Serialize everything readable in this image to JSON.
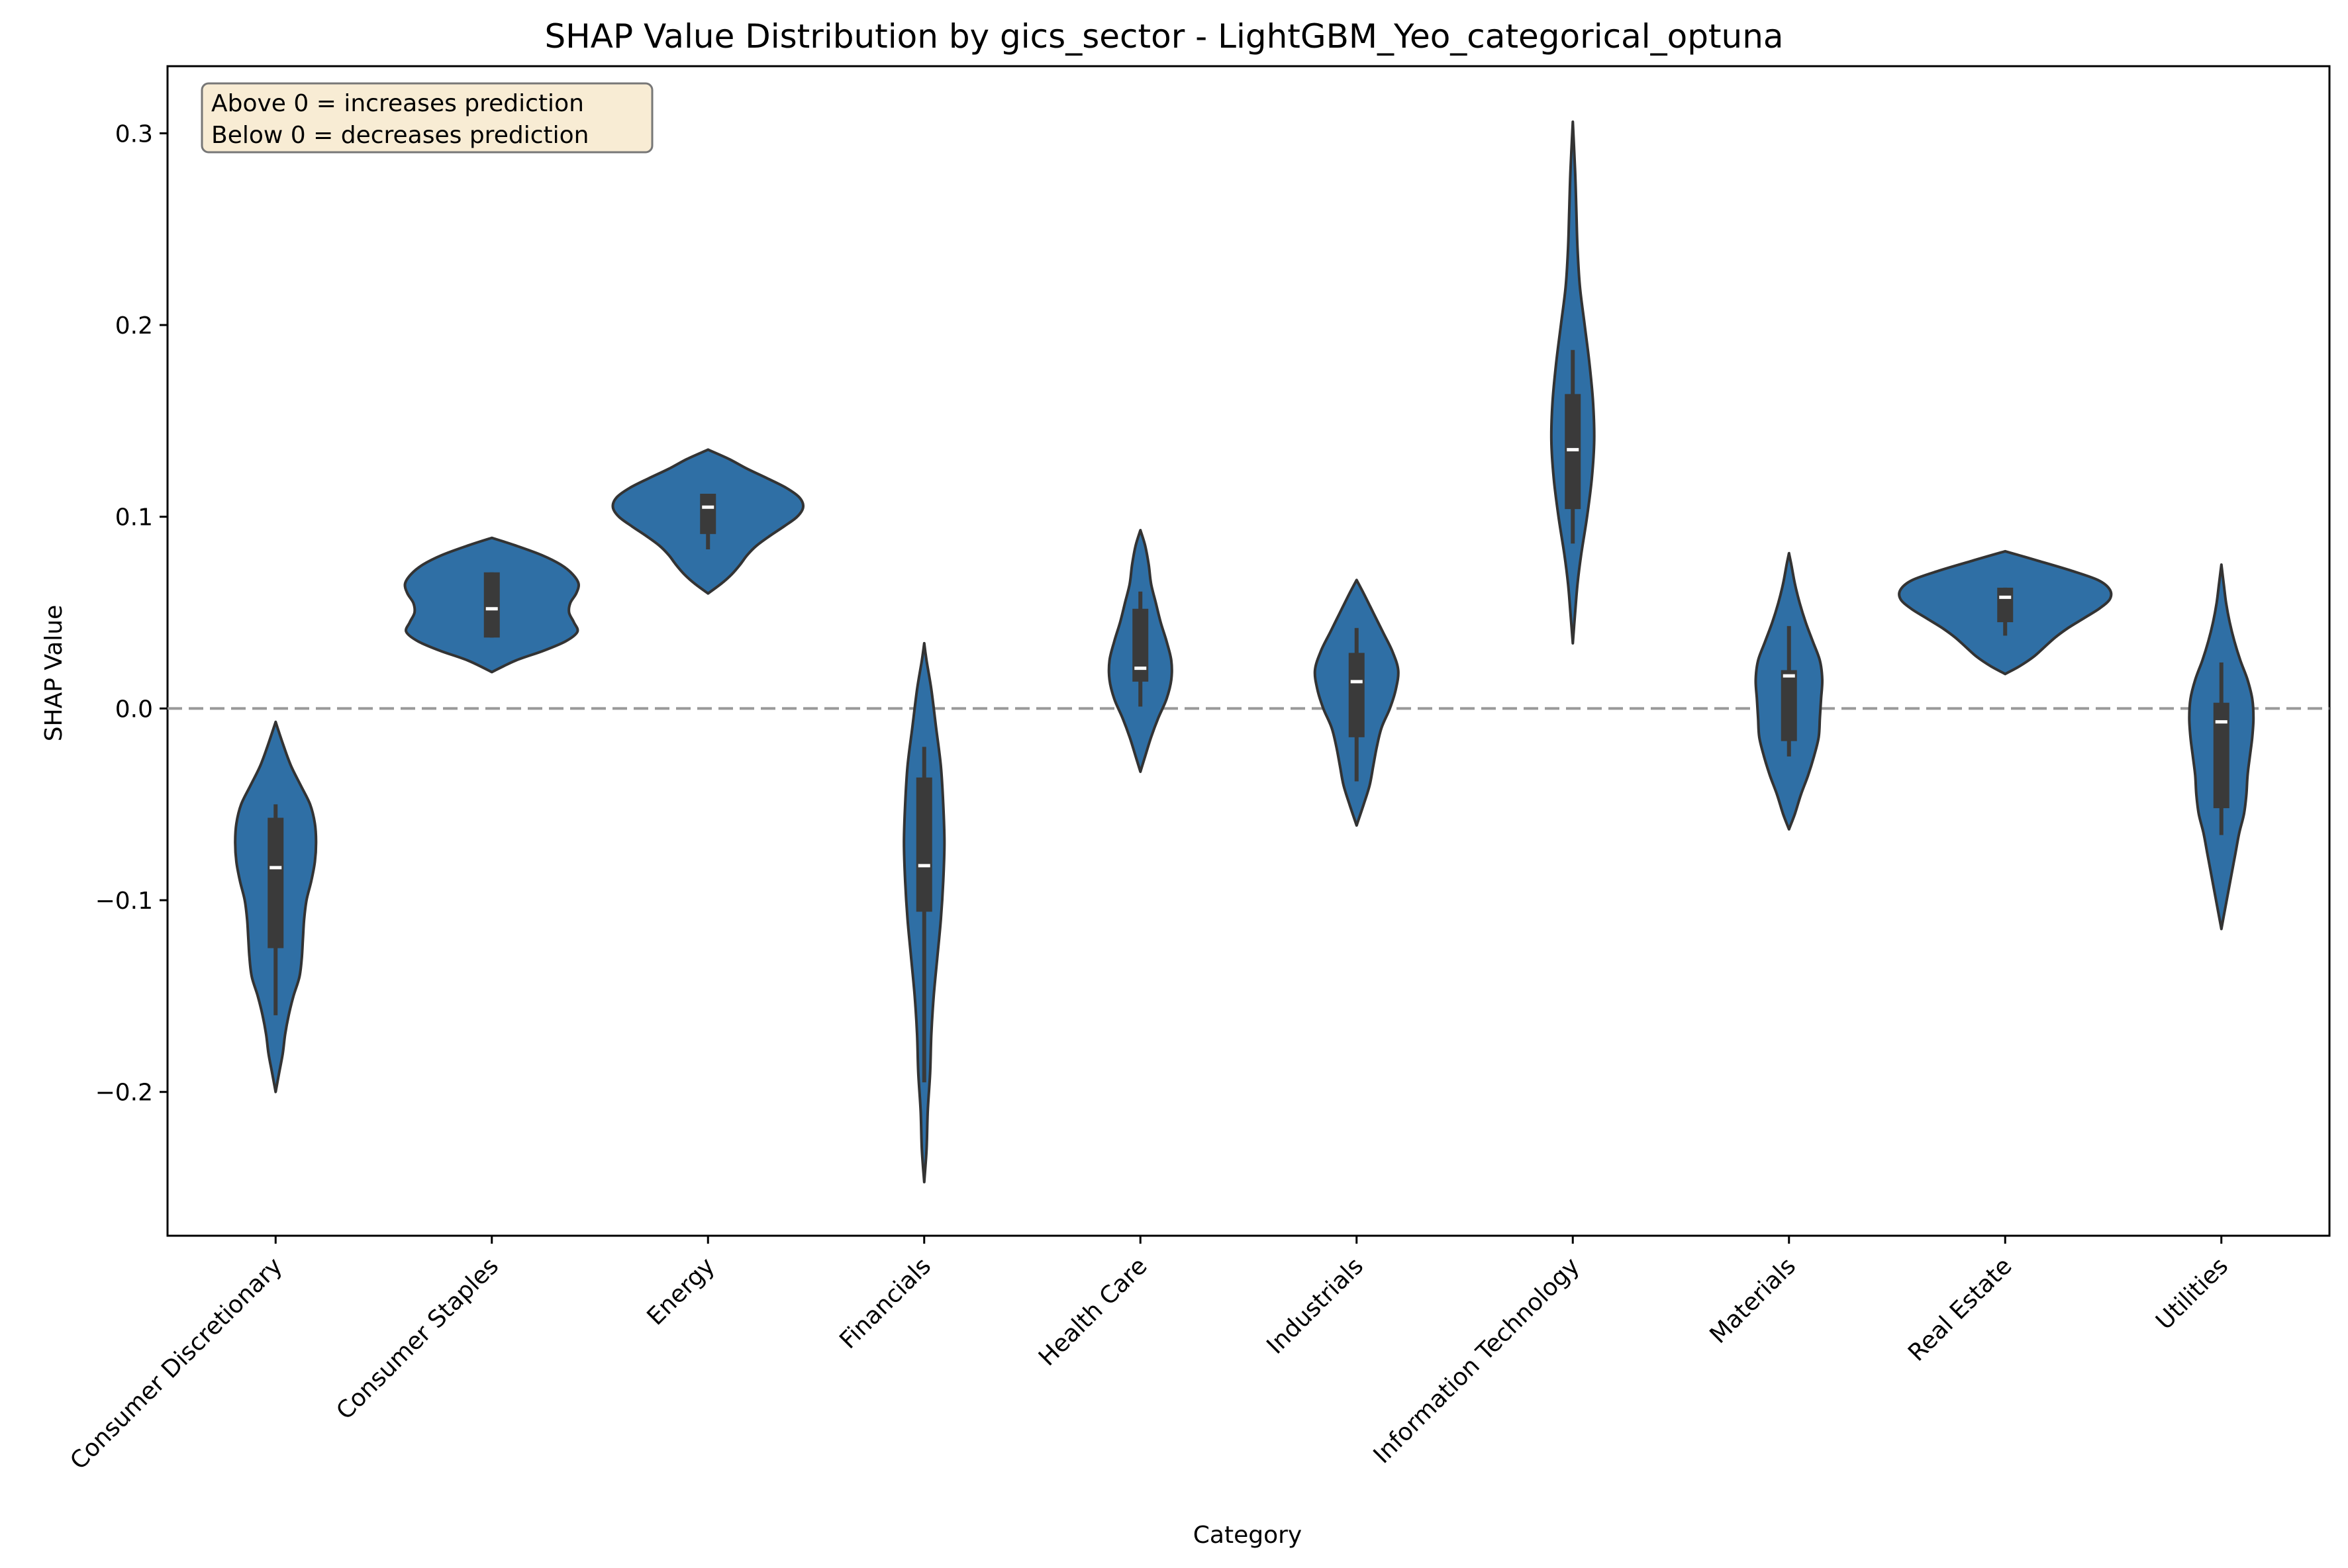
{
  "chart_data": {
    "type": "violin",
    "title": "SHAP Value Distribution by gics_sector - LightGBM_Yeo_categorical_optuna",
    "xlabel": "Category",
    "ylabel": "SHAP Value",
    "ylim": [
      -0.275,
      0.335
    ],
    "yticks": [
      -0.2,
      -0.1,
      0.0,
      0.1,
      0.2,
      0.3
    ],
    "ytick_labels": [
      "−0.2",
      "−0.1",
      "0.0",
      "0.1",
      "0.2",
      "0.3"
    ],
    "reference_line": {
      "y": 0.0,
      "style": "dashed",
      "color": "#999999"
    },
    "annotation": {
      "lines": [
        "Above 0 = increases prediction",
        "Below 0 = decreases prediction"
      ],
      "placement": "top-left"
    },
    "violin_color": "#2f6fa5",
    "edge_color": "#333333",
    "grid": false,
    "categories": [
      "Consumer Discretionary",
      "Consumer Staples",
      "Energy",
      "Financials",
      "Health Care",
      "Industrials",
      "Information Technology",
      "Materials",
      "Real Estate",
      "Utilities"
    ],
    "violins": [
      {
        "category": "Consumer Discretionary",
        "min": -0.16,
        "q1": -0.125,
        "median": -0.083,
        "q3": -0.057,
        "max": -0.05,
        "profile": [
          [
            -0.2,
            0
          ],
          [
            -0.19,
            0.003
          ],
          [
            -0.18,
            0.006
          ],
          [
            -0.17,
            0.008
          ],
          [
            -0.16,
            0.011
          ],
          [
            -0.15,
            0.015
          ],
          [
            -0.14,
            0.02
          ],
          [
            -0.13,
            0.022
          ],
          [
            -0.12,
            0.023
          ],
          [
            -0.11,
            0.024
          ],
          [
            -0.1,
            0.026
          ],
          [
            -0.09,
            0.03
          ],
          [
            -0.08,
            0.033
          ],
          [
            -0.07,
            0.034
          ],
          [
            -0.06,
            0.033
          ],
          [
            -0.05,
            0.029
          ],
          [
            -0.04,
            0.021
          ],
          [
            -0.03,
            0.013
          ],
          [
            -0.02,
            0.007
          ],
          [
            -0.007,
            0
          ]
        ]
      },
      {
        "category": "Consumer Staples",
        "min": 0.037,
        "q1": 0.037,
        "median": 0.052,
        "q3": 0.071,
        "max": 0.071,
        "profile": [
          [
            0.019,
            0
          ],
          [
            0.025,
            0.02
          ],
          [
            0.03,
            0.043
          ],
          [
            0.035,
            0.062
          ],
          [
            0.04,
            0.072
          ],
          [
            0.045,
            0.069
          ],
          [
            0.05,
            0.065
          ],
          [
            0.055,
            0.066
          ],
          [
            0.06,
            0.071
          ],
          [
            0.065,
            0.073
          ],
          [
            0.07,
            0.068
          ],
          [
            0.075,
            0.058
          ],
          [
            0.08,
            0.042
          ],
          [
            0.085,
            0.02
          ],
          [
            0.089,
            0
          ]
        ]
      },
      {
        "category": "Energy",
        "min": 0.083,
        "q1": 0.091,
        "median": 0.105,
        "q3": 0.112,
        "max": 0.112,
        "profile": [
          [
            0.06,
            0
          ],
          [
            0.065,
            0.011
          ],
          [
            0.07,
            0.02
          ],
          [
            0.075,
            0.027
          ],
          [
            0.08,
            0.033
          ],
          [
            0.085,
            0.041
          ],
          [
            0.09,
            0.052
          ],
          [
            0.095,
            0.064
          ],
          [
            0.1,
            0.075
          ],
          [
            0.105,
            0.08
          ],
          [
            0.11,
            0.077
          ],
          [
            0.115,
            0.066
          ],
          [
            0.12,
            0.05
          ],
          [
            0.125,
            0.033
          ],
          [
            0.13,
            0.018
          ],
          [
            0.135,
            0
          ]
        ]
      },
      {
        "category": "Financials",
        "min": -0.195,
        "q1": -0.106,
        "median": -0.082,
        "q3": -0.036,
        "max": -0.02,
        "profile": [
          [
            -0.247,
            0
          ],
          [
            -0.23,
            0.002
          ],
          [
            -0.21,
            0.003
          ],
          [
            -0.19,
            0.005
          ],
          [
            -0.17,
            0.006
          ],
          [
            -0.15,
            0.008
          ],
          [
            -0.13,
            0.011
          ],
          [
            -0.11,
            0.014
          ],
          [
            -0.09,
            0.016
          ],
          [
            -0.07,
            0.017
          ],
          [
            -0.05,
            0.016
          ],
          [
            -0.03,
            0.014
          ],
          [
            -0.01,
            0.01
          ],
          [
            0.01,
            0.006
          ],
          [
            0.025,
            0.002
          ],
          [
            0.034,
            0
          ]
        ]
      },
      {
        "category": "Health Care",
        "min": 0.001,
        "q1": 0.014,
        "median": 0.021,
        "q3": 0.052,
        "max": 0.061,
        "profile": [
          [
            -0.033,
            0
          ],
          [
            -0.025,
            0.004
          ],
          [
            -0.015,
            0.009
          ],
          [
            -0.005,
            0.015
          ],
          [
            0.005,
            0.022
          ],
          [
            0.015,
            0.026
          ],
          [
            0.025,
            0.026
          ],
          [
            0.035,
            0.022
          ],
          [
            0.045,
            0.017
          ],
          [
            0.055,
            0.013
          ],
          [
            0.065,
            0.009
          ],
          [
            0.075,
            0.007
          ],
          [
            0.085,
            0.004
          ],
          [
            0.093,
            0
          ]
        ]
      },
      {
        "category": "Industrials",
        "min": -0.038,
        "q1": -0.015,
        "median": 0.014,
        "q3": 0.029,
        "max": 0.042,
        "profile": [
          [
            -0.061,
            0
          ],
          [
            -0.05,
            0.006
          ],
          [
            -0.04,
            0.011
          ],
          [
            -0.03,
            0.014
          ],
          [
            -0.02,
            0.017
          ],
          [
            -0.01,
            0.021
          ],
          [
            0.0,
            0.028
          ],
          [
            0.01,
            0.033
          ],
          [
            0.02,
            0.035
          ],
          [
            0.03,
            0.03
          ],
          [
            0.04,
            0.022
          ],
          [
            0.05,
            0.014
          ],
          [
            0.06,
            0.006
          ],
          [
            0.067,
            0
          ]
        ]
      },
      {
        "category": "Information Technology",
        "min": 0.086,
        "q1": 0.104,
        "median": 0.135,
        "q3": 0.164,
        "max": 0.187,
        "profile": [
          [
            0.034,
            0
          ],
          [
            0.05,
            0.002
          ],
          [
            0.065,
            0.004
          ],
          [
            0.08,
            0.007
          ],
          [
            0.1,
            0.012
          ],
          [
            0.12,
            0.016
          ],
          [
            0.14,
            0.018
          ],
          [
            0.16,
            0.017
          ],
          [
            0.18,
            0.014
          ],
          [
            0.2,
            0.01
          ],
          [
            0.22,
            0.006
          ],
          [
            0.24,
            0.004
          ],
          [
            0.26,
            0.003
          ],
          [
            0.28,
            0.002
          ],
          [
            0.306,
            0
          ]
        ]
      },
      {
        "category": "Materials",
        "min": -0.025,
        "q1": -0.017,
        "median": 0.017,
        "q3": 0.02,
        "max": 0.043,
        "profile": [
          [
            -0.063,
            0
          ],
          [
            -0.055,
            0.005
          ],
          [
            -0.045,
            0.01
          ],
          [
            -0.035,
            0.016
          ],
          [
            -0.025,
            0.021
          ],
          [
            -0.015,
            0.025
          ],
          [
            -0.005,
            0.026
          ],
          [
            0.005,
            0.027
          ],
          [
            0.015,
            0.028
          ],
          [
            0.025,
            0.026
          ],
          [
            0.035,
            0.02
          ],
          [
            0.045,
            0.014
          ],
          [
            0.055,
            0.009
          ],
          [
            0.065,
            0.005
          ],
          [
            0.075,
            0.002
          ],
          [
            0.081,
            0
          ]
        ]
      },
      {
        "category": "Real Estate",
        "min": 0.038,
        "q1": 0.045,
        "median": 0.058,
        "q3": 0.063,
        "max": 0.063,
        "profile": [
          [
            0.018,
            0
          ],
          [
            0.022,
            0.012
          ],
          [
            0.027,
            0.024
          ],
          [
            0.032,
            0.033
          ],
          [
            0.037,
            0.042
          ],
          [
            0.042,
            0.053
          ],
          [
            0.047,
            0.066
          ],
          [
            0.052,
            0.079
          ],
          [
            0.057,
            0.088
          ],
          [
            0.062,
            0.088
          ],
          [
            0.067,
            0.078
          ],
          [
            0.072,
            0.055
          ],
          [
            0.077,
            0.028
          ],
          [
            0.082,
            0
          ]
        ]
      },
      {
        "category": "Utilities",
        "min": -0.066,
        "q1": -0.052,
        "median": -0.007,
        "q3": 0.003,
        "max": 0.024,
        "profile": [
          [
            -0.115,
            0
          ],
          [
            -0.105,
            0.003
          ],
          [
            -0.095,
            0.006
          ],
          [
            -0.085,
            0.009
          ],
          [
            -0.075,
            0.012
          ],
          [
            -0.065,
            0.015
          ],
          [
            -0.055,
            0.019
          ],
          [
            -0.045,
            0.021
          ],
          [
            -0.035,
            0.022
          ],
          [
            -0.025,
            0.024
          ],
          [
            -0.015,
            0.026
          ],
          [
            -0.005,
            0.027
          ],
          [
            0.005,
            0.026
          ],
          [
            0.015,
            0.022
          ],
          [
            0.025,
            0.016
          ],
          [
            0.035,
            0.011
          ],
          [
            0.045,
            0.007
          ],
          [
            0.055,
            0.004
          ],
          [
            0.065,
            0.002
          ],
          [
            0.075,
            0
          ]
        ]
      }
    ]
  }
}
